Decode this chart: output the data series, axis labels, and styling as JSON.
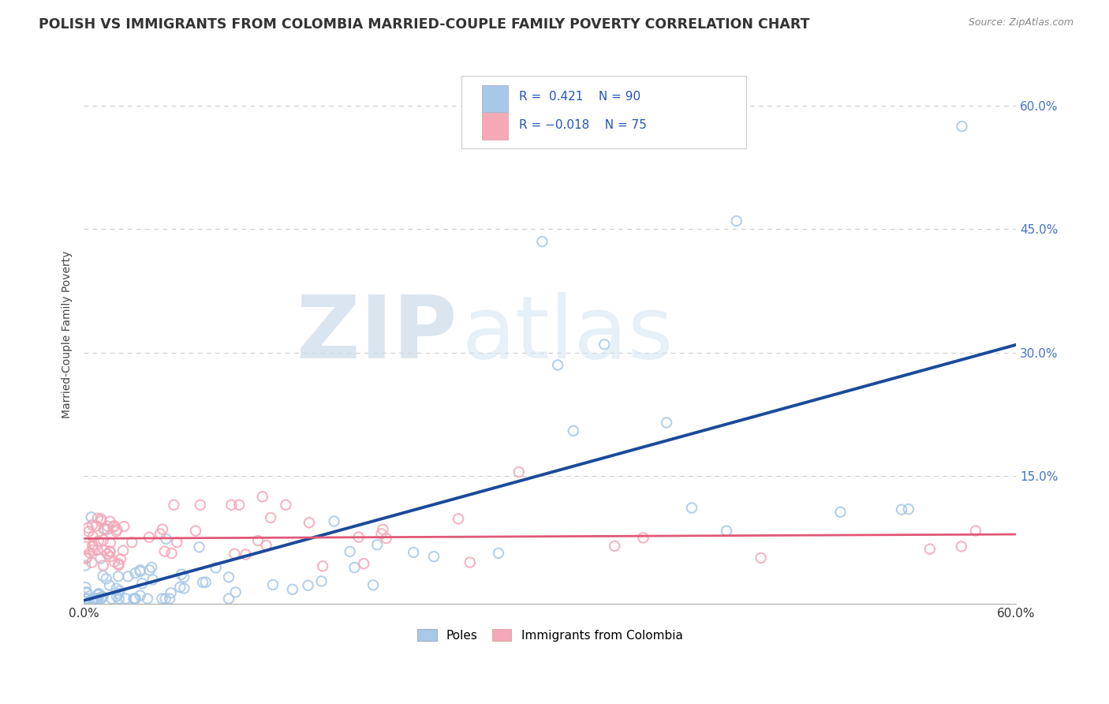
{
  "title": "POLISH VS IMMIGRANTS FROM COLOMBIA MARRIED-COUPLE FAMILY POVERTY CORRELATION CHART",
  "source": "Source: ZipAtlas.com",
  "ylabel": "Married-Couple Family Poverty",
  "xlim": [
    0.0,
    0.6
  ],
  "ylim": [
    -0.005,
    0.65
  ],
  "ytick_values": [
    0.15,
    0.3,
    0.45,
    0.6
  ],
  "ytick_labels": [
    "15.0%",
    "30.0%",
    "45.0%",
    "60.0%"
  ],
  "color_polish": "#a8c8e8",
  "color_polish_line": "#1a4a9a",
  "color_colombia": "#f4a8b8",
  "color_colombia_line": "#e05878",
  "background_color": "#ffffff",
  "grid_color": "#cccccc",
  "watermark_zip": "ZIP",
  "watermark_atlas": "atlas",
  "r_polish": 0.421,
  "n_polish": 90,
  "r_colombia": -0.018,
  "n_colombia": 75
}
